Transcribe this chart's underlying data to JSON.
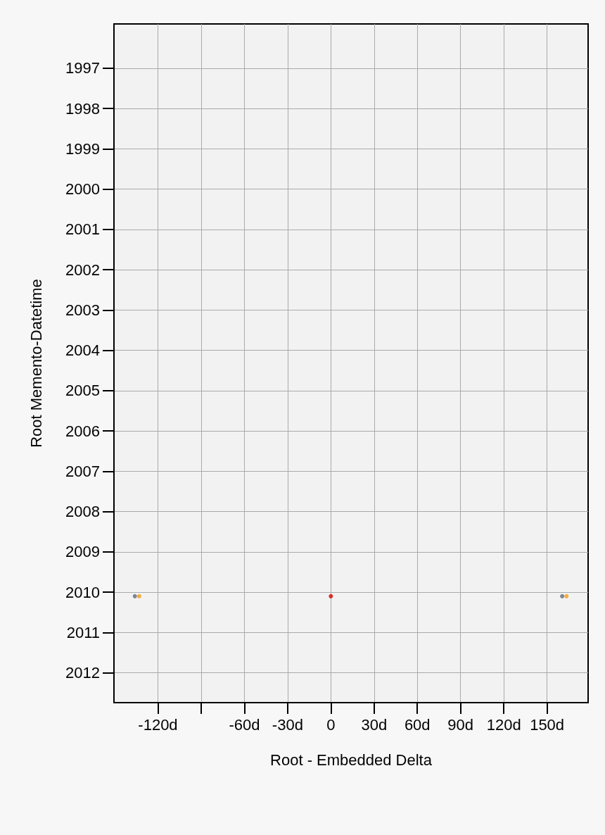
{
  "chart_data": {
    "type": "scatter",
    "xlabel": "Root - Embedded Delta",
    "ylabel": "Root Memento-Datetime",
    "xlim": [
      -150.5,
      178.5
    ],
    "xticks": [
      {
        "value": -120,
        "label": "-120d"
      },
      {
        "value": -90,
        "label": null
      },
      {
        "value": -60,
        "label": "-60d"
      },
      {
        "value": -30,
        "label": "-30d"
      },
      0,
      {
        "value": 30,
        "label": "30d"
      },
      {
        "value": 60,
        "label": "60d"
      },
      {
        "value": 90,
        "label": "90d"
      },
      {
        "value": 120,
        "label": "120d"
      },
      {
        "value": 150,
        "label": "150d"
      }
    ],
    "ylim": [
      2012.74,
      1995.9
    ],
    "yticks": [
      1997,
      1998,
      1999,
      2000,
      2001,
      2002,
      2003,
      2004,
      2005,
      2006,
      2007,
      2008,
      2009,
      2010,
      2011,
      2012
    ],
    "grid": true,
    "marker": "circle",
    "series": [
      {
        "color": "#5f6b7a",
        "x": [
          -136,
          160.5
        ],
        "values": [
          2010.1,
          2010.1
        ]
      },
      {
        "color": "#f59a12",
        "x": [
          -133,
          163.5
        ],
        "values": [
          2010.1,
          2010.1
        ]
      },
      {
        "color": "#d40000",
        "x": [
          0
        ],
        "values": [
          2010.1
        ]
      }
    ]
  }
}
